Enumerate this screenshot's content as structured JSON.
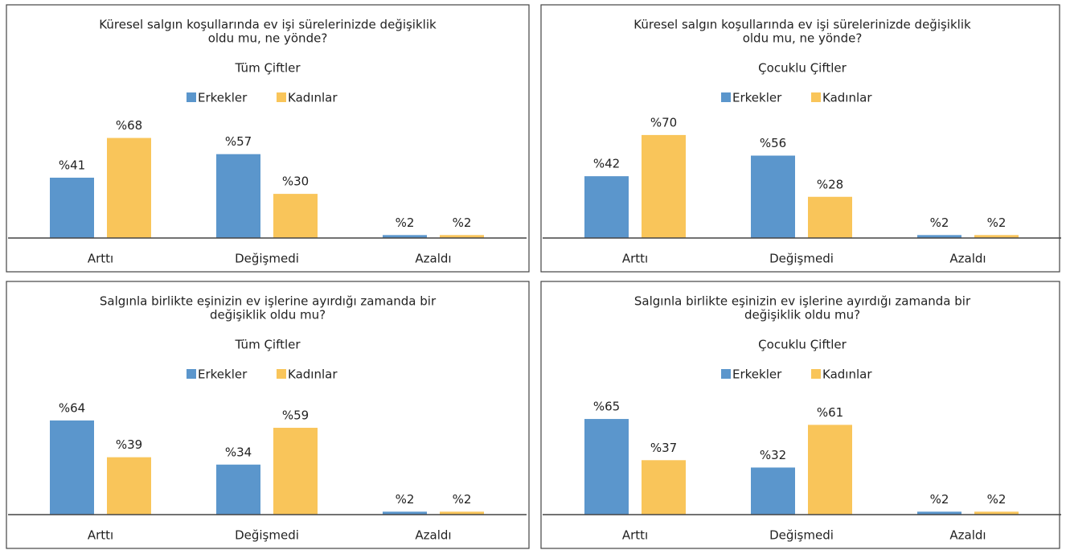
{
  "chart_data": [
    {
      "type": "bar",
      "title": [
        "Küresel salgın koşullarında ev işi sürelerinizde değişiklik",
        "oldu mu, ne yönde?"
      ],
      "subtitle": "Tüm Çiftler",
      "categories": [
        "Arttı",
        "Değişmedi",
        "Azaldı"
      ],
      "series": [
        {
          "name": "Erkekler",
          "color": "#5b96cc",
          "values": [
            41,
            57,
            2
          ],
          "value_labels": [
            "%41",
            "%57",
            "%2"
          ]
        },
        {
          "name": "Kadınlar",
          "color": "#f9c55a",
          "values": [
            68,
            30,
            2
          ],
          "value_labels": [
            "%68",
            "%30",
            "%2"
          ]
        }
      ]
    },
    {
      "type": "bar",
      "title": [
        "Küresel salgın koşullarında ev işi sürelerinizde değişiklik",
        "oldu mu, ne yönde?"
      ],
      "subtitle": "Çocuklu Çiftler",
      "categories": [
        "Arttı",
        "Değişmedi",
        "Azaldı"
      ],
      "series": [
        {
          "name": "Erkekler",
          "color": "#5b96cc",
          "values": [
            42,
            56,
            2
          ],
          "value_labels": [
            "%42",
            "%56",
            "%2"
          ]
        },
        {
          "name": "Kadınlar",
          "color": "#f9c55a",
          "values": [
            70,
            28,
            2
          ],
          "value_labels": [
            "%70",
            "%28",
            "%2"
          ]
        }
      ]
    },
    {
      "type": "bar",
      "title": [
        "Salgınla birlikte eşinizin ev işlerine ayırdığı zamanda bir",
        "değişiklik oldu mu?"
      ],
      "subtitle": "Tüm Çiftler",
      "categories": [
        "Arttı",
        "Değişmedi",
        "Azaldı"
      ],
      "series": [
        {
          "name": "Erkekler",
          "color": "#5b96cc",
          "values": [
            64,
            34,
            2
          ],
          "value_labels": [
            "%64",
            "%34",
            "%2"
          ]
        },
        {
          "name": "Kadınlar",
          "color": "#f9c55a",
          "values": [
            39,
            59,
            2
          ],
          "value_labels": [
            "%39",
            "%59",
            "%2"
          ]
        }
      ]
    },
    {
      "type": "bar",
      "title": [
        "Salgınla birlikte eşinizin ev işlerine ayırdığı zamanda bir",
        "değişiklik oldu mu?"
      ],
      "subtitle": "Çocuklu Çiftler",
      "categories": [
        "Arttı",
        "Değişmedi",
        "Azaldı"
      ],
      "series": [
        {
          "name": "Erkekler",
          "color": "#5b96cc",
          "values": [
            65,
            32,
            2
          ],
          "value_labels": [
            "%65",
            "%32",
            "%2"
          ]
        },
        {
          "name": "Kadınlar",
          "color": "#f9c55a",
          "values": [
            37,
            61,
            2
          ],
          "value_labels": [
            "%37",
            "%61",
            "%2"
          ]
        }
      ]
    }
  ]
}
